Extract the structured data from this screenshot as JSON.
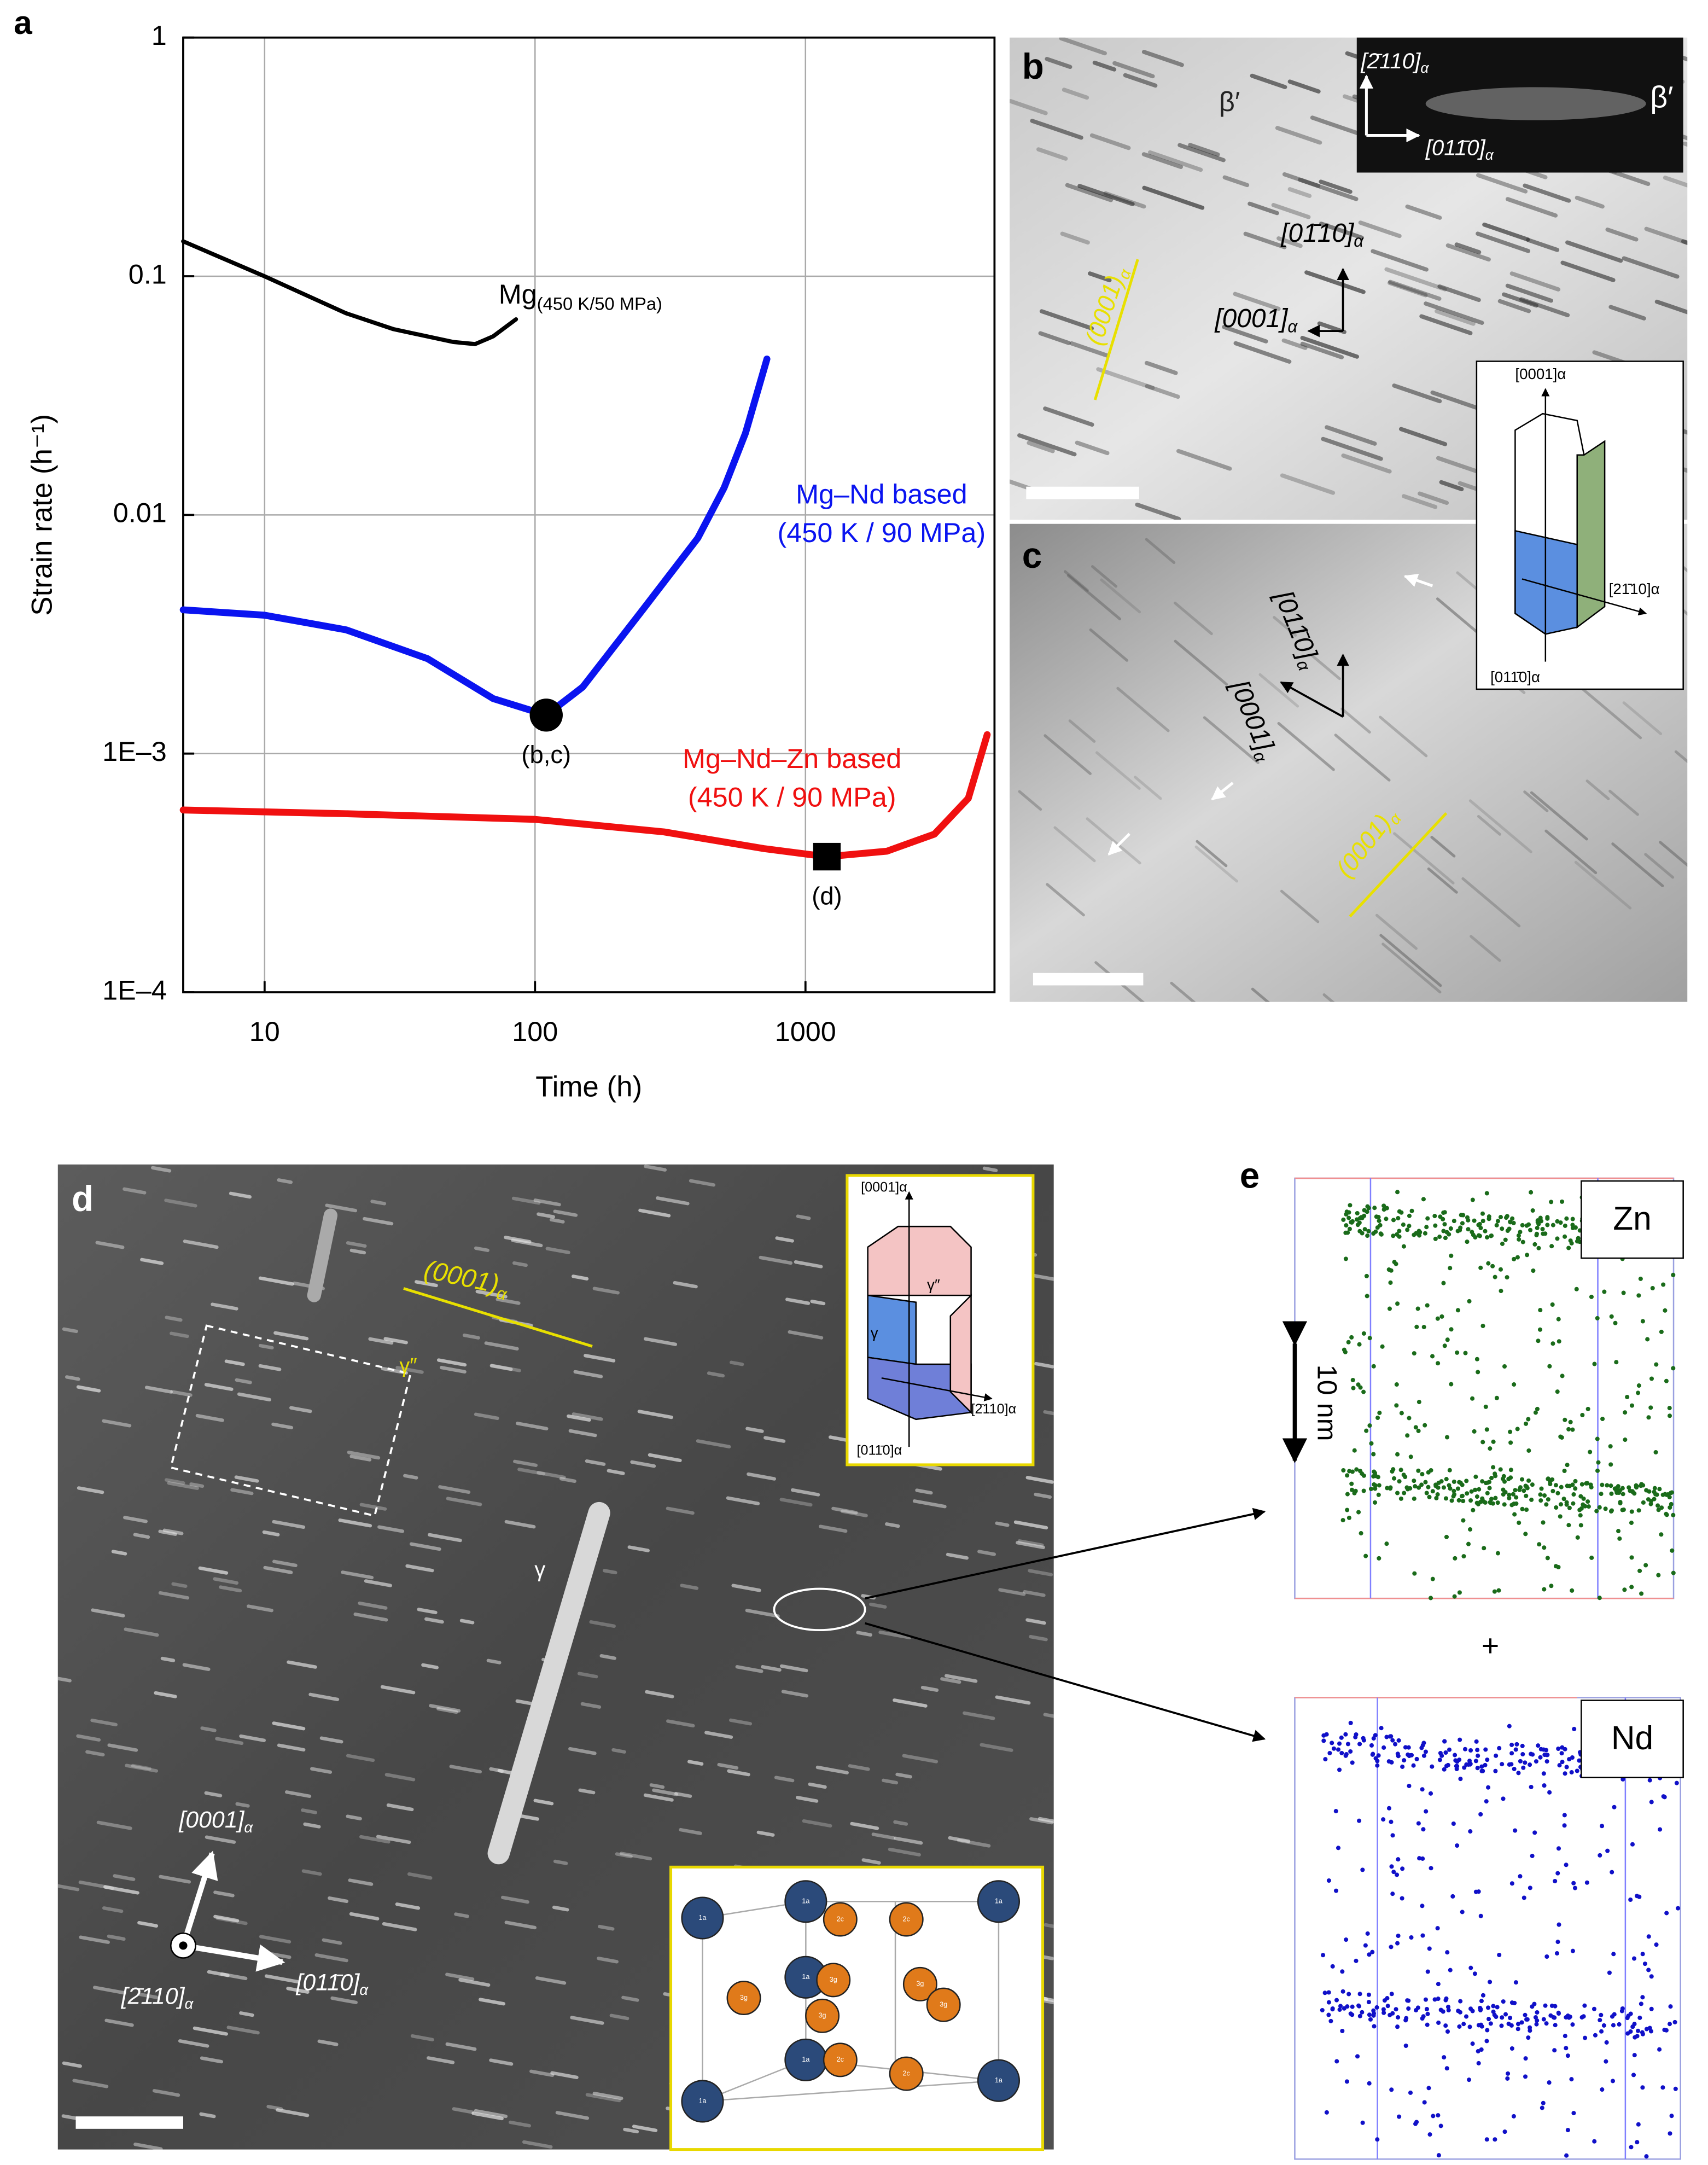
{
  "chart_data": {
    "type": "line",
    "panel": "a",
    "xlabel": "Time (h)",
    "ylabel": "Strain rate (h⁻¹)",
    "xscale": "log",
    "yscale": "log",
    "xlim": [
      5,
      5000
    ],
    "ylim": [
      0.0001,
      1
    ],
    "xticks": [
      10,
      100,
      1000
    ],
    "yticks": [
      {
        "value": 0.0001,
        "label": "1E–4"
      },
      {
        "value": 0.001,
        "label": "1E–3"
      },
      0.01,
      0.1,
      1
    ],
    "grid": true,
    "series": [
      {
        "name": "Mg",
        "condition": "(450 K/50 MPa)",
        "color": "#000000",
        "x": [
          5,
          10,
          20,
          30,
          50,
          60,
          70,
          85
        ],
        "values": [
          0.14,
          0.1,
          0.07,
          0.06,
          0.053,
          0.052,
          0.056,
          0.066
        ]
      },
      {
        "name": "Mg–Nd based",
        "condition": "(450 K / 90 MPa)",
        "color": "#0a14f0",
        "x": [
          5,
          10,
          20,
          40,
          70,
          110,
          150,
          250,
          400,
          500,
          600,
          720
        ],
        "values": [
          0.004,
          0.0038,
          0.0033,
          0.0025,
          0.0017,
          0.00145,
          0.0019,
          0.004,
          0.008,
          0.013,
          0.022,
          0.045
        ]
      },
      {
        "name": "Mg–Nd–Zn based",
        "condition": "(450 K / 90 MPa)",
        "color": "#f01010",
        "x": [
          5,
          20,
          100,
          300,
          700,
          1200,
          2000,
          3000,
          4000,
          4700
        ],
        "values": [
          0.00058,
          0.00056,
          0.00053,
          0.00047,
          0.0004,
          0.00037,
          0.00039,
          0.00046,
          0.00065,
          0.0012
        ]
      }
    ],
    "markers": [
      {
        "label": "(b,c)",
        "shape": "circle",
        "x": 110,
        "y": 0.00145
      },
      {
        "label": "(d)",
        "shape": "square",
        "x": 1200,
        "y": 0.00037
      }
    ]
  },
  "panels": {
    "b": {
      "label": "b",
      "texts": [
        "β′",
        "β′",
        {
          "t": "[2̄110]",
          "sub": "α"
        },
        {
          "t": "[011̄0]",
          "sub": "α"
        },
        {
          "t": "(0001)",
          "sub": "α"
        },
        {
          "t": "[01̄10]",
          "sub": "α"
        },
        {
          "t": "[0001]",
          "sub": "α"
        }
      ]
    },
    "inset": {
      "texts": [
        "[0001]α",
        "[21̄10]α",
        "[011̄0]α"
      ]
    },
    "c": {
      "label": "c",
      "texts": [
        {
          "t": "[011̄0]",
          "sub": "α"
        },
        {
          "t": "[0001]",
          "sub": "α"
        },
        {
          "t": "(0001)",
          "sub": "α"
        }
      ]
    },
    "d": {
      "label": "d",
      "texts": [
        {
          "t": "(0001)",
          "sub": "α"
        },
        "γ″",
        "γ",
        {
          "t": "[0001]",
          "sub": "α"
        },
        {
          "t": "[2̄110]",
          "sub": "α"
        },
        {
          "t": "[011̄0]",
          "sub": "α"
        }
      ],
      "inset_texts": [
        "[0001]α",
        "[2̄110]α",
        "[011̄0]α",
        "γ″",
        "γ"
      ],
      "atom_labels": [
        "1a",
        "2c",
        "3g"
      ]
    },
    "e": {
      "label": "e",
      "texts": [
        "Zn",
        "Nd",
        "+",
        "10 nm"
      ]
    }
  }
}
